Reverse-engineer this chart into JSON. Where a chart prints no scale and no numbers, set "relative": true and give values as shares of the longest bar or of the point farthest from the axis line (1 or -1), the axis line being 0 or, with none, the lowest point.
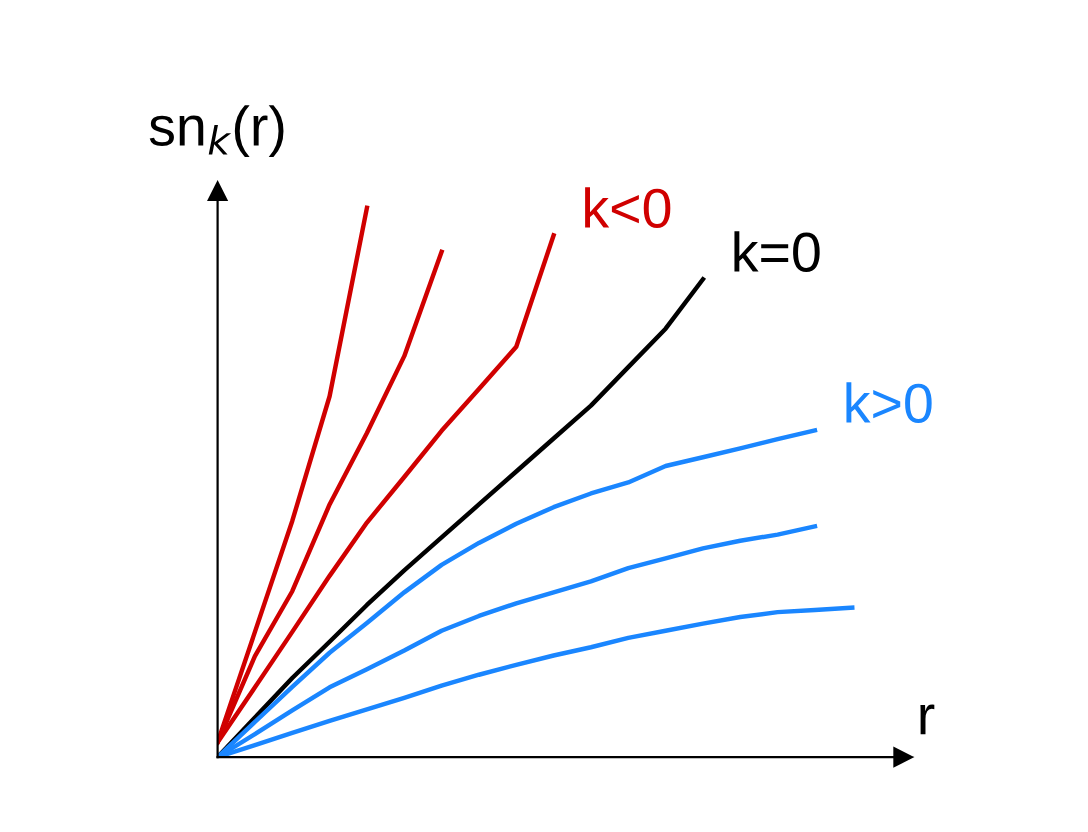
{
  "chart_data": {
    "type": "line",
    "relative": true,
    "xlabel": "r",
    "ylabel": "sn$_{k}$(r)",
    "legend": false,
    "marker": "none",
    "line_style": "solid",
    "categories": [
      null,
      null,
      null,
      null,
      null,
      null,
      null,
      null,
      null,
      null,
      null,
      null,
      null,
      null,
      null,
      null,
      null,
      null
    ],
    "series": [
      {
        "color": "#d00000",
        "values": [
          0.027,
          0.228,
          0.43,
          0.657,
          1.0,
          null,
          null,
          null,
          null,
          null,
          null,
          null,
          null,
          null,
          null,
          null,
          null,
          null
        ]
      },
      {
        "color": "#d00000",
        "values": [
          0.027,
          0.184,
          0.302,
          0.46,
          0.59,
          0.73,
          0.92,
          null,
          null,
          null,
          null,
          null,
          null,
          null,
          null,
          null,
          null,
          null
        ]
      },
      {
        "name": "k<0",
        "color": "#d00000",
        "values": [
          0.027,
          0.127,
          0.228,
          0.33,
          0.427,
          0.51,
          0.594,
          0.67,
          0.747,
          0.95,
          null,
          null,
          null,
          null,
          null,
          null,
          null,
          null
        ]
      },
      {
        "name": "k=0",
        "color": "#000000",
        "values": [
          0,
          0.072,
          0.144,
          0.21,
          0.277,
          0.34,
          0.4,
          0.46,
          0.52,
          0.58,
          0.64,
          0.71,
          0.78,
          0.87,
          null,
          null,
          null,
          null
        ]
      },
      {
        "name": "k>0",
        "color": "#1a86ff",
        "values": [
          0,
          0.064,
          0.128,
          0.19,
          0.244,
          0.3,
          0.35,
          0.39,
          0.425,
          0.455,
          0.48,
          0.5,
          0.53,
          0.546,
          0.562,
          0.579,
          0.595,
          null
        ]
      },
      {
        "color": "#1a86ff",
        "values": [
          0,
          0.042,
          0.085,
          0.127,
          0.16,
          0.194,
          0.23,
          0.257,
          0.28,
          0.3,
          0.32,
          0.344,
          0.362,
          0.38,
          0.394,
          0.405,
          0.42,
          null
        ]
      },
      {
        "color": "#1a86ff",
        "values": [
          0,
          0.022,
          0.044,
          0.066,
          0.087,
          0.108,
          0.13,
          0.15,
          0.168,
          0.185,
          0.2,
          0.217,
          0.23,
          0.243,
          0.255,
          0.264,
          0.268,
          0.272
        ]
      }
    ]
  }
}
